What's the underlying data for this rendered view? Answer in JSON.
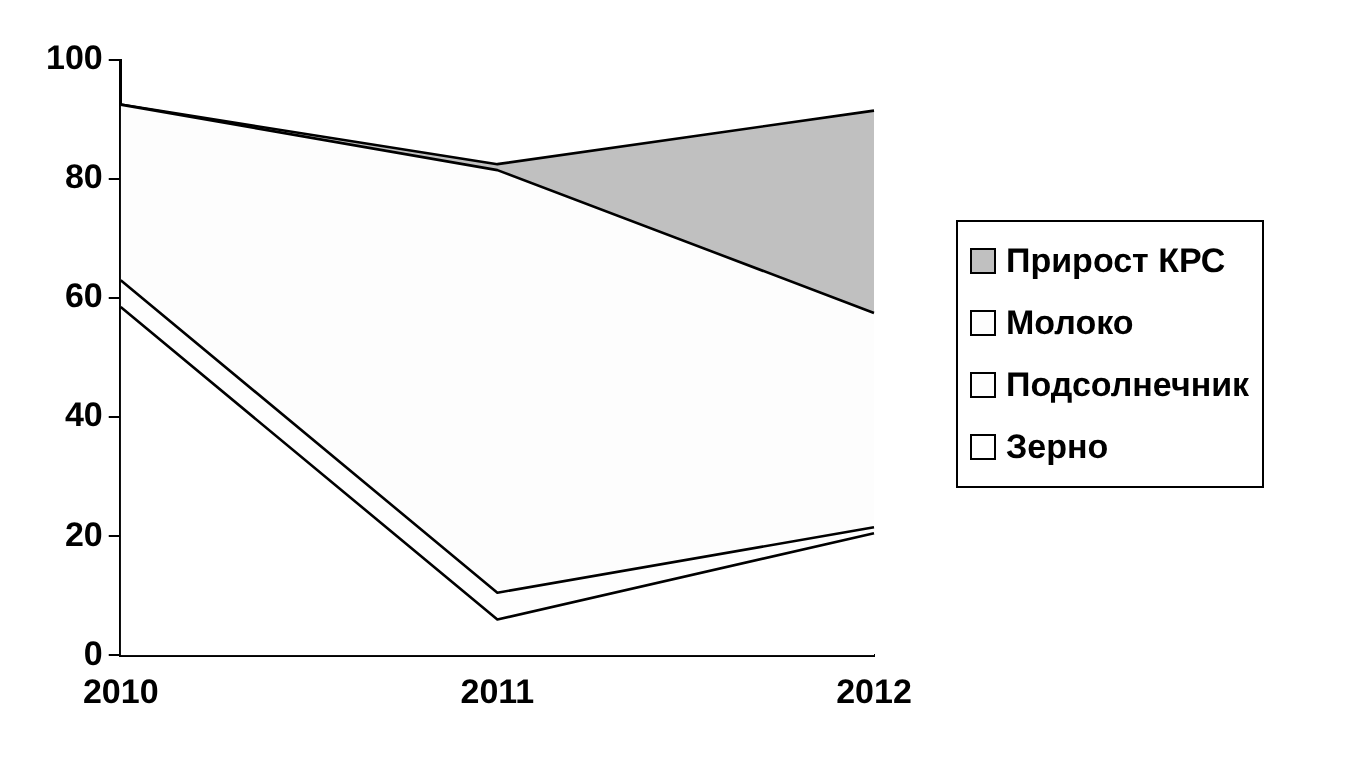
{
  "chart_data": {
    "type": "area",
    "stacked": true,
    "categories": [
      "2010",
      "2011",
      "2012"
    ],
    "series": [
      {
        "name": "Зерно",
        "color": "#ffffff",
        "values": [
          58.5,
          6,
          20.5
        ]
      },
      {
        "name": "Подсолнечник",
        "color": "#fefefe",
        "values": [
          4.5,
          4.5,
          1
        ]
      },
      {
        "name": "Молоко",
        "color": "#fdfdfd",
        "values": [
          29.5,
          71,
          36
        ]
      },
      {
        "name": "Прирост КРС",
        "color": "#c0c0c0",
        "values": [
          0,
          1,
          34
        ]
      }
    ],
    "ylim": [
      0,
      100
    ],
    "yticks": [
      0,
      20,
      40,
      60,
      80,
      100
    ],
    "grid": false,
    "legend": "right"
  }
}
